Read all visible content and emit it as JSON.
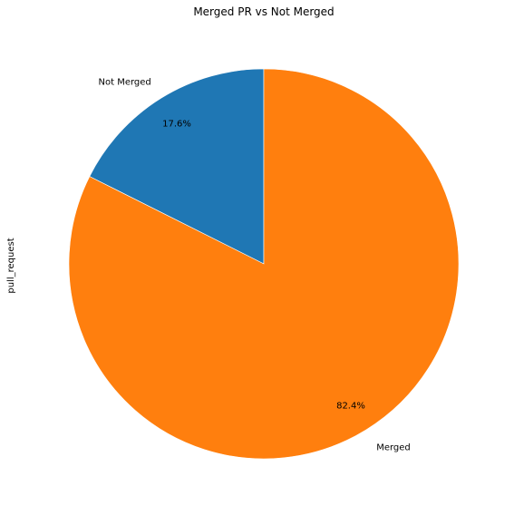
{
  "chart_data": {
    "type": "pie",
    "title": "Merged PR vs Not Merged",
    "ylabel": "pull_request",
    "slices": [
      {
        "label": "Not Merged",
        "value": 17.6,
        "pct_label": "17.6%",
        "color": "#1f77b4"
      },
      {
        "label": "Merged",
        "value": 82.4,
        "pct_label": "82.4%",
        "color": "#ff7f0e"
      }
    ],
    "start_angle_deg": 90,
    "direction": "counterclockwise",
    "legend": "none"
  }
}
